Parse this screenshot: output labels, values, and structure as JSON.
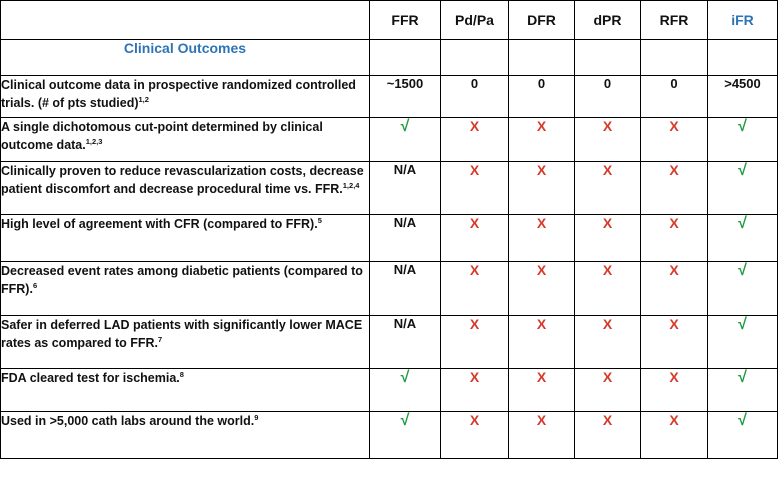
{
  "columns": [
    "FFR",
    "Pd/Pa",
    "DFR",
    "dPR",
    "RFR",
    "iFR"
  ],
  "section_title": "Clinical Outcomes",
  "rows": [
    {
      "text": "Clinical outcome data in prospective randomized controlled trials. (# of pts studied)",
      "refs": "1,2",
      "values": [
        "~1500",
        "0",
        "0",
        "0",
        "0",
        ">4500"
      ]
    },
    {
      "text": "A single dichotomous cut-point determined by clinical outcome data.",
      "refs": "1,2,3",
      "values": [
        "√",
        "X",
        "X",
        "X",
        "X",
        "√"
      ]
    },
    {
      "text": "Clinically proven to reduce revascularization costs, decrease patient discomfort and decrease procedural time vs. FFR.",
      "refs": "1,2,4",
      "values": [
        "N/A",
        "X",
        "X",
        "X",
        "X",
        "√"
      ]
    },
    {
      "text": "High level of agreement with CFR (compared to FFR).",
      "refs": "5",
      "values": [
        "N/A",
        "X",
        "X",
        "X",
        "X",
        "√"
      ]
    },
    {
      "text": "Decreased event rates among diabetic patients (compared to FFR).",
      "refs": "6",
      "values": [
        "N/A",
        "X",
        "X",
        "X",
        "X",
        "√"
      ]
    },
    {
      "text": "Safer in deferred LAD patients with significantly lower MACE rates as compared to FFR.",
      "refs": "7",
      "values": [
        "N/A",
        "X",
        "X",
        "X",
        "X",
        "√"
      ]
    },
    {
      "text": "FDA cleared test for ischemia.",
      "refs": "8",
      "values": [
        "√",
        "X",
        "X",
        "X",
        "X",
        "√"
      ]
    },
    {
      "text": "Used in >5,000 cath labs around the world.",
      "refs": "9",
      "values": [
        "√",
        "X",
        "X",
        "X",
        "X",
        "√"
      ]
    }
  ],
  "colors": {
    "check": "#1e9b3c",
    "cross": "#d63a2a",
    "highlight_header": "#2e74b5",
    "section_title": "#2e74b5"
  }
}
